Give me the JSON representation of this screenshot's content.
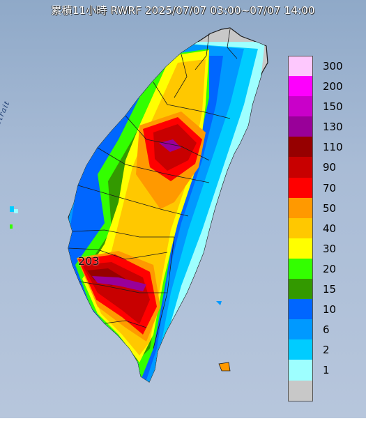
{
  "title": "累積11小時 RWRF 2025/07/07 03:00~07/07 14:00",
  "sea_label": "Formosa Strait",
  "peak": {
    "label": "203",
    "value": 203
  },
  "colors": {
    "sea": "#a9bcd6",
    "land_dry": "#c8c8c8",
    "county_border": "#1a1a1a"
  },
  "legend": {
    "entries": [
      {
        "label": "300",
        "color": "#fdc8fd"
      },
      {
        "label": "200",
        "color": "#fd00fd"
      },
      {
        "label": "150",
        "color": "#c900c9"
      },
      {
        "label": "130",
        "color": "#990099"
      },
      {
        "label": "110",
        "color": "#960000"
      },
      {
        "label": "90",
        "color": "#c80000"
      },
      {
        "label": "70",
        "color": "#ff0000"
      },
      {
        "label": "50",
        "color": "#ff9900"
      },
      {
        "label": "40",
        "color": "#ffc800"
      },
      {
        "label": "30",
        "color": "#ffff00"
      },
      {
        "label": "20",
        "color": "#33ff00"
      },
      {
        "label": "15",
        "color": "#339900"
      },
      {
        "label": "10",
        "color": "#0066ff"
      },
      {
        "label": "6",
        "color": "#0099ff"
      },
      {
        "label": "2",
        "color": "#00ccff"
      },
      {
        "label": "1",
        "color": "#9effff"
      },
      {
        "label": "",
        "color": "#c8c8c8"
      }
    ]
  }
}
